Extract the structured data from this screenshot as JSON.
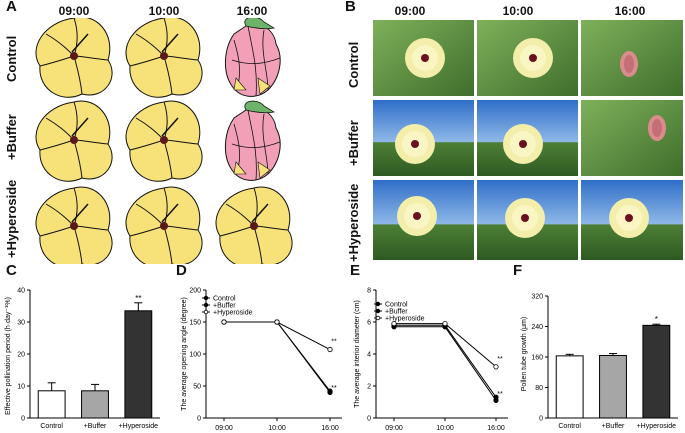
{
  "figure": {
    "panels": {
      "A": "A",
      "B": "B",
      "C": "C",
      "D": "D",
      "E": "E",
      "F": "F"
    },
    "times": [
      "09:00",
      "10:00",
      "16:00"
    ],
    "treatments": [
      "Control",
      "+Buffer",
      "+Hyperoside"
    ]
  },
  "colors": {
    "open_flower": "#f7e27a",
    "closed_flower": "#f2a0b8",
    "sepal_green": "#6db36a",
    "bar_control": "#ffffff",
    "bar_buffer": "#a6a6a6",
    "bar_hyperoside": "#333333"
  },
  "chart_data": [
    {
      "panel": "C",
      "type": "bar",
      "ylabel": "Effective pollination period (h·day⁻¹%)",
      "ylim": [
        0,
        40
      ],
      "yticks": [
        "0",
        "10",
        "20",
        "30",
        "40"
      ],
      "categories": [
        "Control",
        "+Buffer",
        "+Hyperoside"
      ],
      "values": [
        8.5,
        8.5,
        33.5
      ],
      "errors": [
        2.5,
        2,
        2.5
      ],
      "annotations": [
        "",
        "",
        "**"
      ]
    },
    {
      "panel": "D",
      "type": "line",
      "ylabel": "The average opening angle (degree)",
      "ylim": [
        0,
        200
      ],
      "yticks": [
        "0",
        "50",
        "100",
        "150",
        "200"
      ],
      "x": [
        "09:00",
        "10:00",
        "16:00"
      ],
      "legend": [
        "Control",
        "+Buffer",
        "+Hyperoside"
      ],
      "series": [
        {
          "name": "Control",
          "values": [
            150,
            150,
            42
          ]
        },
        {
          "name": "+Buffer",
          "values": [
            150,
            150,
            40
          ]
        },
        {
          "name": "+Hyperoside",
          "values": [
            150,
            150,
            107
          ]
        }
      ],
      "annotations": [
        "**",
        "**"
      ]
    },
    {
      "panel": "E",
      "type": "line",
      "ylabel": "The average interior diameter (cm)",
      "ylim": [
        0,
        8
      ],
      "yticks": [
        "0",
        "2",
        "4",
        "6",
        "8"
      ],
      "x": [
        "09:00",
        "10:00",
        "16:00"
      ],
      "legend": [
        "Control",
        "+Buffer",
        "+Hyperoside"
      ],
      "series": [
        {
          "name": "Control",
          "values": [
            5.8,
            5.8,
            1.3
          ]
        },
        {
          "name": "+Buffer",
          "values": [
            5.7,
            5.7,
            1.1
          ]
        },
        {
          "name": "+Hyperoside",
          "values": [
            5.9,
            5.9,
            3.2
          ]
        }
      ],
      "annotations": [
        "**",
        "**"
      ]
    },
    {
      "panel": "F",
      "type": "bar",
      "ylabel": "Pollen tube growth (μm)",
      "ylim": [
        0,
        320
      ],
      "yticks": [
        "0",
        "80",
        "160",
        "240",
        "320"
      ],
      "categories": [
        "Control",
        "+Buffer",
        "+Hyperoside"
      ],
      "values": [
        163,
        164,
        243
      ],
      "errors": [
        4,
        5,
        3
      ],
      "annotations": [
        "",
        "",
        "*"
      ]
    }
  ]
}
